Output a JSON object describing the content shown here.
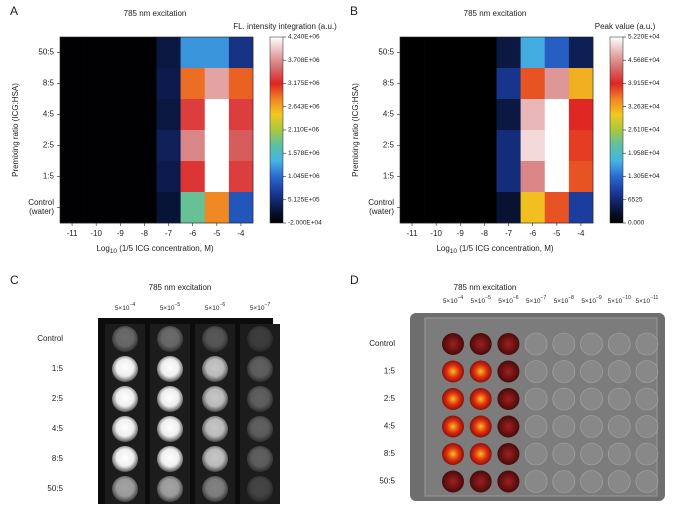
{
  "chart_data": [
    {
      "type": "heatmap",
      "panel": "A",
      "title": "785 nm excitation",
      "colorbar_label": "FL. intensity integration (a.u.)",
      "xlabel": [
        "Log",
        "10",
        " (1/5 ICG concentration, M)"
      ],
      "ylabel": "Premixing ratio (ICG:HSA)",
      "x": [
        -11,
        -10,
        -9,
        -8,
        -7,
        -6,
        -5,
        -4
      ],
      "xlim": [
        -11.5,
        -3.5
      ],
      "xticks": [
        -11,
        -10,
        -9,
        -8,
        -7,
        -6,
        -5,
        -4
      ],
      "categories": [
        "50:5",
        "8:5",
        "4:5",
        "2:5",
        "1:5",
        "Control\n(water)"
      ],
      "values": [
        [
          0,
          0,
          0,
          0,
          300000,
          1250000,
          1250000,
          600000
        ],
        [
          0,
          0,
          0,
          0,
          350000,
          2900000,
          3800000,
          2950000
        ],
        [
          0,
          0,
          0,
          0,
          300000,
          3300000,
          4240000,
          3300000
        ],
        [
          0,
          0,
          0,
          0,
          400000,
          3650000,
          4240000,
          3450000
        ],
        [
          0,
          0,
          0,
          0,
          350000,
          3250000,
          4240000,
          3300000
        ],
        [
          0,
          0,
          0,
          0,
          250000,
          1800000,
          2800000,
          900000
        ]
      ],
      "zlim": [
        -20000,
        4240000
      ],
      "zticks": [
        {
          "value": -20000,
          "label": "-2.000E+04"
        },
        {
          "value": 512500,
          "label": "5.125E+05"
        },
        {
          "value": 1045000,
          "label": "1.045E+06"
        },
        {
          "value": 1578000,
          "label": "1.578E+06"
        },
        {
          "value": 2110000,
          "label": "2.110E+06"
        },
        {
          "value": 2643000,
          "label": "2.643E+06"
        },
        {
          "value": 3175000,
          "label": "3.175E+06"
        },
        {
          "value": 3708000,
          "label": "3.708E+06"
        },
        {
          "value": 4240000,
          "label": "4.240E+06"
        }
      ],
      "colormap": [
        "#000000",
        "#0b1a48",
        "#1a3a9a",
        "#2a6ad0",
        "#46b4e4",
        "#5cc0a4",
        "#a8c840",
        "#f2c820",
        "#f08424",
        "#e02424",
        "#d46e6e",
        "#e8b4b4",
        "#ffffff"
      ]
    },
    {
      "type": "heatmap",
      "panel": "B",
      "title": "785 nm excitation",
      "colorbar_label": "Peak value (a.u.)",
      "xlabel": [
        "Log",
        "10",
        " (1/5 ICG concentration, M)"
      ],
      "ylabel": "Premixing ratio (ICG:HSA)",
      "x": [
        -11,
        -10,
        -9,
        -8,
        -7,
        -6,
        -5,
        -4
      ],
      "xlim": [
        -11.5,
        -3.5
      ],
      "xticks": [
        -11,
        -10,
        -9,
        -8,
        -7,
        -6,
        -5,
        -4
      ],
      "categories": [
        "50:5",
        "8:5",
        "4:5",
        "2:5",
        "1:5",
        "Control\n(water)"
      ],
      "values": [
        [
          0,
          0,
          0,
          0,
          4000,
          17000,
          12000,
          5000
        ],
        [
          0,
          0,
          0,
          0,
          8000,
          37000,
          46000,
          32000
        ],
        [
          0,
          0,
          0,
          0,
          4000,
          48000,
          52200,
          39000
        ],
        [
          0,
          0,
          0,
          0,
          7000,
          50000,
          52200,
          38000
        ],
        [
          0,
          0,
          0,
          0,
          7000,
          45000,
          52200,
          37000
        ],
        [
          0,
          0,
          0,
          0,
          3000,
          31000,
          37000,
          9000
        ]
      ],
      "zlim": [
        0,
        52200
      ],
      "zticks": [
        {
          "value": 0,
          "label": "0.000"
        },
        6525,
        {
          "value": 13050,
          "label": "1.305E+04"
        },
        {
          "value": 19580,
          "label": "1.958E+04"
        },
        {
          "value": 26100,
          "label": "2.610E+04"
        },
        {
          "value": 32630,
          "label": "3.263E+04"
        },
        {
          "value": 39150,
          "label": "3.915E+04"
        },
        {
          "value": 45680,
          "label": "4.568E+04"
        },
        {
          "value": 52200,
          "label": "5.220E+04"
        }
      ],
      "colormap": [
        "#000000",
        "#0b1a48",
        "#1a3a9a",
        "#2a6ad0",
        "#46b4e4",
        "#5cc0a4",
        "#a8c840",
        "#f2c820",
        "#f08424",
        "#e02424",
        "#d46e6e",
        "#e8b4b4",
        "#ffffff"
      ]
    },
    {
      "type": "image",
      "panel": "C",
      "title": "785 nm excitation",
      "columns": [
        [
          "5×10",
          "−4"
        ],
        [
          "5×10",
          "−5"
        ],
        [
          "5×10",
          "−6"
        ],
        [
          "5×10",
          "−7"
        ]
      ],
      "rows": [
        "Control",
        "1:5",
        "2:5",
        "4:5",
        "8:5",
        "50:5"
      ]
    },
    {
      "type": "image",
      "panel": "D",
      "title": "785 nm excitation",
      "columns": [
        [
          "5×10",
          "−4"
        ],
        [
          "5×10",
          "−5"
        ],
        [
          "5×10",
          "−6"
        ],
        [
          "5×10",
          "−7"
        ],
        [
          "5×10",
          "−8"
        ],
        [
          "5×10",
          "−9"
        ],
        [
          "5×10",
          "−10"
        ],
        [
          "5×10",
          "−11"
        ]
      ],
      "rows": [
        "Control",
        "1:5",
        "2:5",
        "4:5",
        "8:5",
        "50:5"
      ]
    }
  ]
}
